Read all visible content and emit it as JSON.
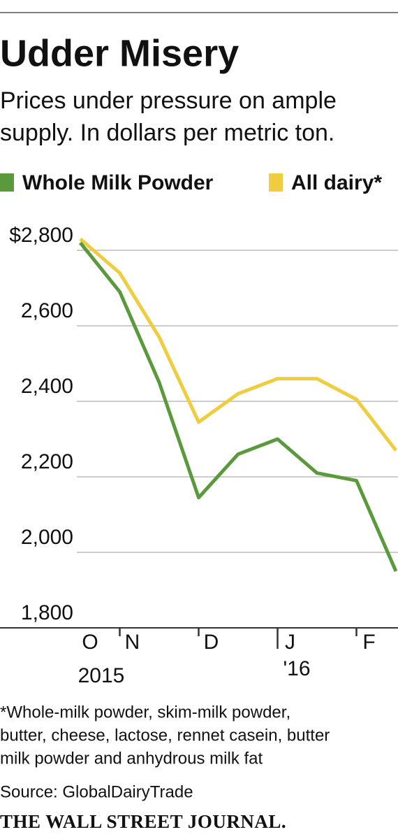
{
  "chart_data": {
    "type": "line",
    "title": "Udder Misery",
    "subtitle": [
      "Prices under pressure on ample",
      "supply. In dollars per metric ton."
    ],
    "categories": [
      "O",
      "N",
      null,
      "D",
      null,
      "J",
      null,
      "F",
      null
    ],
    "annotations": [
      "2015",
      "'16"
    ],
    "series": [
      {
        "name": "Whole Milk Powder",
        "color": "#5a9a3c",
        "values": [
          2820,
          2690,
          2450,
          2145,
          2260,
          2300,
          2210,
          2190,
          1950
        ]
      },
      {
        "name": "All dairy*",
        "color": "#f0cc3f",
        "values": [
          2830,
          2740,
          2570,
          2345,
          2420,
          2460,
          2460,
          2405,
          2270
        ]
      }
    ],
    "ylim": [
      1800,
      2850
    ],
    "yticks": [
      {
        "value": 1800,
        "label": "1,800"
      },
      {
        "value": 2000,
        "label": "2,000"
      },
      {
        "value": 2200,
        "label": "2,200"
      },
      {
        "value": 2400,
        "label": "2,400"
      },
      {
        "value": 2600,
        "label": "2,600"
      },
      {
        "value": 2800,
        "label": "$2,800"
      }
    ],
    "grid": true,
    "footnote": [
      "*Whole-milk powder, skim-milk powder,",
      "butter, cheese, lactose, rennet casein, butter",
      "milk powder and anhydrous milk fat"
    ],
    "source": "Source: GlobalDairyTrade",
    "publisher": "THE WALL STREET JOURNAL."
  }
}
